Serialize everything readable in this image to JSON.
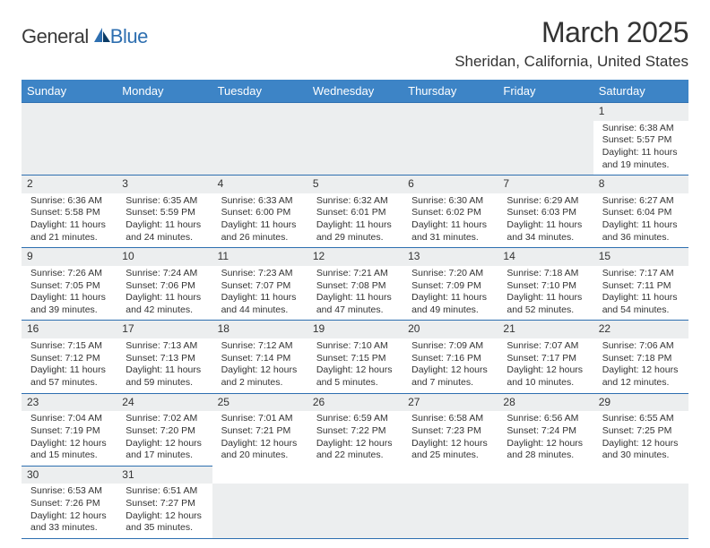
{
  "logo": {
    "general": "General",
    "blue": "Blue"
  },
  "title": "March 2025",
  "subtitle": "Sheridan, California, United States",
  "colors": {
    "header_bg": "#3d84c6",
    "header_fg": "#ffffff",
    "daynum_bg": "#eceeef",
    "border": "#2e6fb0",
    "text": "#333333",
    "logo_gray": "#3a3a3a",
    "logo_blue": "#2e6fb0"
  },
  "weekdays": [
    "Sunday",
    "Monday",
    "Tuesday",
    "Wednesday",
    "Thursday",
    "Friday",
    "Saturday"
  ],
  "weeks": [
    [
      null,
      null,
      null,
      null,
      null,
      null,
      {
        "n": "1",
        "sr": "Sunrise: 6:38 AM",
        "ss": "Sunset: 5:57 PM",
        "d1": "Daylight: 11 hours",
        "d2": "and 19 minutes."
      }
    ],
    [
      {
        "n": "2",
        "sr": "Sunrise: 6:36 AM",
        "ss": "Sunset: 5:58 PM",
        "d1": "Daylight: 11 hours",
        "d2": "and 21 minutes."
      },
      {
        "n": "3",
        "sr": "Sunrise: 6:35 AM",
        "ss": "Sunset: 5:59 PM",
        "d1": "Daylight: 11 hours",
        "d2": "and 24 minutes."
      },
      {
        "n": "4",
        "sr": "Sunrise: 6:33 AM",
        "ss": "Sunset: 6:00 PM",
        "d1": "Daylight: 11 hours",
        "d2": "and 26 minutes."
      },
      {
        "n": "5",
        "sr": "Sunrise: 6:32 AM",
        "ss": "Sunset: 6:01 PM",
        "d1": "Daylight: 11 hours",
        "d2": "and 29 minutes."
      },
      {
        "n": "6",
        "sr": "Sunrise: 6:30 AM",
        "ss": "Sunset: 6:02 PM",
        "d1": "Daylight: 11 hours",
        "d2": "and 31 minutes."
      },
      {
        "n": "7",
        "sr": "Sunrise: 6:29 AM",
        "ss": "Sunset: 6:03 PM",
        "d1": "Daylight: 11 hours",
        "d2": "and 34 minutes."
      },
      {
        "n": "8",
        "sr": "Sunrise: 6:27 AM",
        "ss": "Sunset: 6:04 PM",
        "d1": "Daylight: 11 hours",
        "d2": "and 36 minutes."
      }
    ],
    [
      {
        "n": "9",
        "sr": "Sunrise: 7:26 AM",
        "ss": "Sunset: 7:05 PM",
        "d1": "Daylight: 11 hours",
        "d2": "and 39 minutes."
      },
      {
        "n": "10",
        "sr": "Sunrise: 7:24 AM",
        "ss": "Sunset: 7:06 PM",
        "d1": "Daylight: 11 hours",
        "d2": "and 42 minutes."
      },
      {
        "n": "11",
        "sr": "Sunrise: 7:23 AM",
        "ss": "Sunset: 7:07 PM",
        "d1": "Daylight: 11 hours",
        "d2": "and 44 minutes."
      },
      {
        "n": "12",
        "sr": "Sunrise: 7:21 AM",
        "ss": "Sunset: 7:08 PM",
        "d1": "Daylight: 11 hours",
        "d2": "and 47 minutes."
      },
      {
        "n": "13",
        "sr": "Sunrise: 7:20 AM",
        "ss": "Sunset: 7:09 PM",
        "d1": "Daylight: 11 hours",
        "d2": "and 49 minutes."
      },
      {
        "n": "14",
        "sr": "Sunrise: 7:18 AM",
        "ss": "Sunset: 7:10 PM",
        "d1": "Daylight: 11 hours",
        "d2": "and 52 minutes."
      },
      {
        "n": "15",
        "sr": "Sunrise: 7:17 AM",
        "ss": "Sunset: 7:11 PM",
        "d1": "Daylight: 11 hours",
        "d2": "and 54 minutes."
      }
    ],
    [
      {
        "n": "16",
        "sr": "Sunrise: 7:15 AM",
        "ss": "Sunset: 7:12 PM",
        "d1": "Daylight: 11 hours",
        "d2": "and 57 minutes."
      },
      {
        "n": "17",
        "sr": "Sunrise: 7:13 AM",
        "ss": "Sunset: 7:13 PM",
        "d1": "Daylight: 11 hours",
        "d2": "and 59 minutes."
      },
      {
        "n": "18",
        "sr": "Sunrise: 7:12 AM",
        "ss": "Sunset: 7:14 PM",
        "d1": "Daylight: 12 hours",
        "d2": "and 2 minutes."
      },
      {
        "n": "19",
        "sr": "Sunrise: 7:10 AM",
        "ss": "Sunset: 7:15 PM",
        "d1": "Daylight: 12 hours",
        "d2": "and 5 minutes."
      },
      {
        "n": "20",
        "sr": "Sunrise: 7:09 AM",
        "ss": "Sunset: 7:16 PM",
        "d1": "Daylight: 12 hours",
        "d2": "and 7 minutes."
      },
      {
        "n": "21",
        "sr": "Sunrise: 7:07 AM",
        "ss": "Sunset: 7:17 PM",
        "d1": "Daylight: 12 hours",
        "d2": "and 10 minutes."
      },
      {
        "n": "22",
        "sr": "Sunrise: 7:06 AM",
        "ss": "Sunset: 7:18 PM",
        "d1": "Daylight: 12 hours",
        "d2": "and 12 minutes."
      }
    ],
    [
      {
        "n": "23",
        "sr": "Sunrise: 7:04 AM",
        "ss": "Sunset: 7:19 PM",
        "d1": "Daylight: 12 hours",
        "d2": "and 15 minutes."
      },
      {
        "n": "24",
        "sr": "Sunrise: 7:02 AM",
        "ss": "Sunset: 7:20 PM",
        "d1": "Daylight: 12 hours",
        "d2": "and 17 minutes."
      },
      {
        "n": "25",
        "sr": "Sunrise: 7:01 AM",
        "ss": "Sunset: 7:21 PM",
        "d1": "Daylight: 12 hours",
        "d2": "and 20 minutes."
      },
      {
        "n": "26",
        "sr": "Sunrise: 6:59 AM",
        "ss": "Sunset: 7:22 PM",
        "d1": "Daylight: 12 hours",
        "d2": "and 22 minutes."
      },
      {
        "n": "27",
        "sr": "Sunrise: 6:58 AM",
        "ss": "Sunset: 7:23 PM",
        "d1": "Daylight: 12 hours",
        "d2": "and 25 minutes."
      },
      {
        "n": "28",
        "sr": "Sunrise: 6:56 AM",
        "ss": "Sunset: 7:24 PM",
        "d1": "Daylight: 12 hours",
        "d2": "and 28 minutes."
      },
      {
        "n": "29",
        "sr": "Sunrise: 6:55 AM",
        "ss": "Sunset: 7:25 PM",
        "d1": "Daylight: 12 hours",
        "d2": "and 30 minutes."
      }
    ],
    [
      {
        "n": "30",
        "sr": "Sunrise: 6:53 AM",
        "ss": "Sunset: 7:26 PM",
        "d1": "Daylight: 12 hours",
        "d2": "and 33 minutes."
      },
      {
        "n": "31",
        "sr": "Sunrise: 6:51 AM",
        "ss": "Sunset: 7:27 PM",
        "d1": "Daylight: 12 hours",
        "d2": "and 35 minutes."
      },
      null,
      null,
      null,
      null,
      null
    ]
  ]
}
